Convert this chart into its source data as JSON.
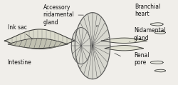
{
  "bg_color": "#f0eeea",
  "labels": {
    "ink_sac": "Ink sac",
    "intestine": "Intestine",
    "accessory_nidamental_gland": "Accessory\nnidamental\ngland",
    "branchial_heart": "Branchial\nheart",
    "nidamental_gland": "Nidamental\ngland",
    "renal_pore": "Renal\npore"
  },
  "font_size": 5.5,
  "line_color": "#333333",
  "title_color": "#111111"
}
